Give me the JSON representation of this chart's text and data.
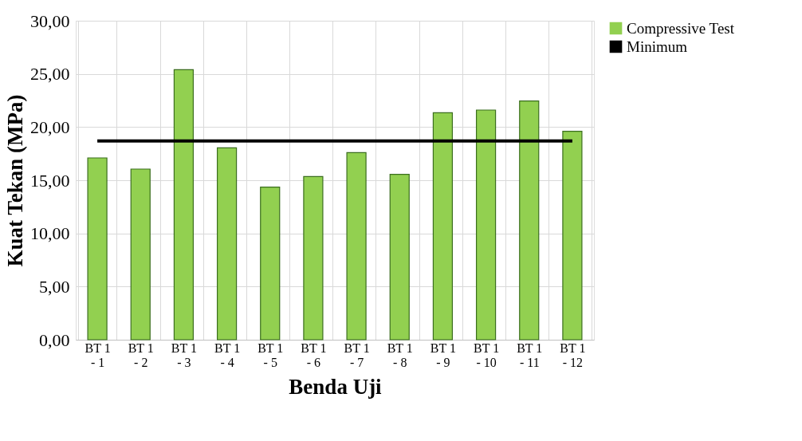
{
  "chart_data": {
    "type": "bar",
    "xlabel": "Benda Uji",
    "ylabel": "Kuat Tekan (MPa)",
    "categories": [
      "BT 1 - 1",
      "BT 1 - 2",
      "BT 1 - 3",
      "BT 1 - 4",
      "BT 1 - 5",
      "BT 1 - 6",
      "BT 1 - 7",
      "BT 1 - 8",
      "BT 1 - 9",
      "BT 1 - 10",
      "BT 1 - 11",
      "BT 1 - 12"
    ],
    "series": [
      {
        "name": "Compressive Test",
        "color": "#92d050",
        "values": [
          17.1,
          16.05,
          25.4,
          18.05,
          14.35,
          15.35,
          17.6,
          15.55,
          21.35,
          21.6,
          22.45,
          19.6
        ]
      },
      {
        "name": "Minimum",
        "type": "line",
        "color": "#000000",
        "values": [
          18.7,
          18.7,
          18.7,
          18.7,
          18.7,
          18.7,
          18.7,
          18.7,
          18.7,
          18.7,
          18.7,
          18.7
        ]
      }
    ],
    "ylim": [
      0,
      30
    ],
    "yticks": [
      {
        "value": 0,
        "label": "0,00"
      },
      {
        "value": 5,
        "label": "5,00"
      },
      {
        "value": 10,
        "label": "10,00"
      },
      {
        "value": 15,
        "label": "15,00"
      },
      {
        "value": 20,
        "label": "20,00"
      },
      {
        "value": 25,
        "label": "25,00"
      },
      {
        "value": 30,
        "label": "30,00"
      }
    ],
    "grid": true,
    "legend": "right"
  }
}
